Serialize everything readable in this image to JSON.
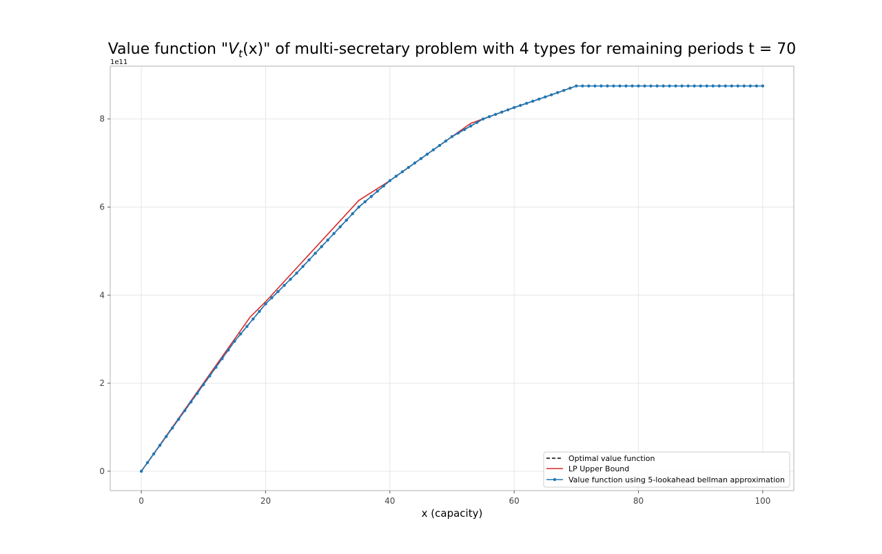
{
  "chart_data": {
    "type": "line",
    "title_prefix": "Value function \"",
    "title_math_var": "V",
    "title_math_sub": "t",
    "title_math_arg": "(x)",
    "title_suffix": "\" of multi-secretary problem with 4 types for remaining periods t = 70",
    "xlabel": "x (capacity)",
    "ylabel": "",
    "y_scale_label": "1e11",
    "xlim": [
      -5,
      105
    ],
    "ylim": [
      -0.44,
      9.2
    ],
    "xticks": [
      0,
      20,
      40,
      60,
      80,
      100
    ],
    "xtick_labels": [
      "0",
      "20",
      "40",
      "60",
      "80",
      "100"
    ],
    "yticks": [
      0,
      2,
      4,
      6,
      8
    ],
    "ytick_labels": [
      "0",
      "2",
      "4",
      "6",
      "8"
    ],
    "grid": true,
    "legend_position": "lower right",
    "series": [
      {
        "name": "Optimal value function",
        "color": "#000000",
        "style": "dashed",
        "x": [
          0,
          15,
          20,
          25,
          30,
          35,
          40,
          45,
          50,
          55,
          60,
          65,
          70,
          100
        ],
        "y": [
          0,
          2.95,
          3.8,
          4.5,
          5.25,
          6.0,
          6.6,
          7.1,
          7.6,
          8.0,
          8.26,
          8.5,
          8.75,
          8.75
        ]
      },
      {
        "name": "LP Upper Bound",
        "color": "#d62728",
        "style": "solid",
        "x": [
          0,
          15,
          17.5,
          20,
          35,
          40,
          53,
          60,
          65,
          70,
          100
        ],
        "y": [
          0,
          3.0,
          3.5,
          3.85,
          6.15,
          6.6,
          7.9,
          8.26,
          8.5,
          8.75,
          8.75
        ]
      },
      {
        "name": "Value function using 5-lookahead bellman approximation",
        "color": "#1f77b4",
        "style": "solid-markers",
        "knots_x": [
          0,
          15,
          20,
          25,
          30,
          35,
          40,
          45,
          50,
          55,
          60,
          65,
          70,
          100
        ],
        "knots_y": [
          0,
          2.95,
          3.8,
          4.5,
          5.25,
          6.0,
          6.6,
          7.1,
          7.6,
          8.0,
          8.26,
          8.5,
          8.75,
          8.75
        ],
        "x_start": 0,
        "x_end": 100,
        "x_step": 1
      }
    ]
  }
}
